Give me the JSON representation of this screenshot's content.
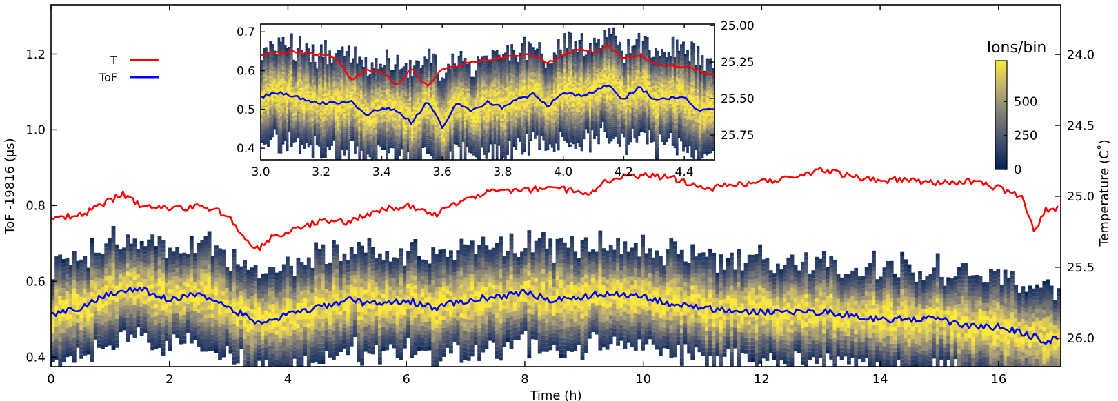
{
  "chart_data": [
    {
      "id": "main",
      "type": "heatmap",
      "title": "",
      "xlabel": "Time (h)",
      "ylabel": "ToF -19816 (μs)",
      "y2label": "Temperature (C˚)",
      "xlim": [
        0,
        17.05
      ],
      "ylim": [
        0.375,
        1.33
      ],
      "y2lim": [
        26.2,
        23.65
      ],
      "x_ticks": [
        0,
        2,
        4,
        6,
        8,
        10,
        12,
        14,
        16
      ],
      "y_ticks": [
        0.4,
        0.6,
        0.8,
        1.0,
        1.2
      ],
      "y_tick_labels": [
        "0.4",
        "0.6",
        "0.8",
        "1.0",
        "1.2"
      ],
      "y2_ticks": [
        24.0,
        24.5,
        25.0,
        25.5,
        26.0
      ],
      "y2_tick_labels": [
        "24.0",
        "24.5",
        "25.0",
        "25.5",
        "26.0"
      ],
      "legend": {
        "position": "upper-left",
        "entries": [
          {
            "label": "T",
            "color": "#ff0000"
          },
          {
            "label": "ToF",
            "color": "#0000ff"
          }
        ]
      },
      "series": [
        {
          "name": "T",
          "axis": "right",
          "color": "#ff0000",
          "x": [
            0,
            0.5,
            1.0,
            1.2,
            1.5,
            2.0,
            2.5,
            3.0,
            3.3,
            3.5,
            3.8,
            4.0,
            4.5,
            5.0,
            5.5,
            6.0,
            6.5,
            7.0,
            7.5,
            8.0,
            8.5,
            9.0,
            9.5,
            10.0,
            10.5,
            11.0,
            11.5,
            12.0,
            12.5,
            13.0,
            13.5,
            14.0,
            14.5,
            15.0,
            15.5,
            16.0,
            16.4,
            16.6,
            16.8,
            17.0
          ],
          "y": [
            25.16,
            25.13,
            25.03,
            24.98,
            25.06,
            25.09,
            25.07,
            25.13,
            25.33,
            25.37,
            25.27,
            25.25,
            25.18,
            25.18,
            25.1,
            25.07,
            25.13,
            25.01,
            24.96,
            24.96,
            24.93,
            24.99,
            24.87,
            24.85,
            24.87,
            24.95,
            24.92,
            24.9,
            24.87,
            24.81,
            24.86,
            24.89,
            24.88,
            24.91,
            24.89,
            24.94,
            25.01,
            25.25,
            25.1,
            25.09
          ]
        },
        {
          "name": "ToF",
          "axis": "left",
          "color": "#0000ff",
          "x": [
            0,
            0.5,
            1.0,
            1.5,
            2.0,
            2.5,
            3.0,
            3.5,
            4.0,
            4.5,
            5.0,
            5.5,
            6.0,
            6.5,
            7.0,
            7.5,
            8.0,
            8.5,
            9.0,
            9.5,
            10.0,
            10.5,
            11.0,
            11.5,
            12.0,
            12.5,
            13.0,
            13.5,
            14.0,
            14.5,
            15.0,
            15.5,
            16.0,
            16.5,
            16.8,
            17.0
          ],
          "y": [
            0.51,
            0.53,
            0.57,
            0.58,
            0.55,
            0.57,
            0.53,
            0.49,
            0.51,
            0.53,
            0.55,
            0.54,
            0.55,
            0.53,
            0.55,
            0.56,
            0.57,
            0.55,
            0.56,
            0.57,
            0.56,
            0.54,
            0.53,
            0.52,
            0.52,
            0.52,
            0.52,
            0.51,
            0.5,
            0.5,
            0.5,
            0.48,
            0.48,
            0.46,
            0.44,
            0.45
          ]
        }
      ],
      "heatmap": {
        "quantity": "Ions/bin",
        "colormap": "cividis",
        "center_follows": "ToF",
        "x_step": 0.06,
        "half_width": 0.13,
        "vmin": 0,
        "vmax": 800
      }
    },
    {
      "id": "inset",
      "type": "heatmap",
      "title": "",
      "xlabel": "",
      "ylabel": "",
      "xlim": [
        3.0,
        4.5
      ],
      "ylim": [
        0.37,
        0.72
      ],
      "y2lim": [
        25.92,
        24.99
      ],
      "x_ticks": [
        3.0,
        3.2,
        3.4,
        3.6,
        3.8,
        4.0,
        4.2,
        4.4
      ],
      "x_tick_labels": [
        "3.0",
        "3.2",
        "3.4",
        "3.6",
        "3.8",
        "4.0",
        "4.2",
        "4.4"
      ],
      "y_ticks": [
        0.4,
        0.5,
        0.6,
        0.7
      ],
      "y_tick_labels": [
        "0.4",
        "0.5",
        "0.6",
        "0.7"
      ],
      "y2_ticks": [
        25.0,
        25.25,
        25.5,
        25.75
      ],
      "y2_tick_labels": [
        "25.00",
        "25.25",
        "25.50",
        "25.75"
      ],
      "series": [
        {
          "name": "T",
          "axis": "right",
          "color": "#ff0000",
          "x": [
            3.0,
            3.1,
            3.2,
            3.25,
            3.3,
            3.35,
            3.4,
            3.45,
            3.5,
            3.55,
            3.6,
            3.7,
            3.8,
            3.9,
            3.95,
            4.0,
            4.05,
            4.1,
            4.15,
            4.2,
            4.25,
            4.3,
            4.4,
            4.5
          ],
          "y": [
            25.2,
            25.18,
            25.2,
            25.22,
            25.37,
            25.3,
            25.32,
            25.41,
            25.3,
            25.42,
            25.3,
            25.25,
            25.22,
            25.2,
            25.25,
            25.2,
            25.16,
            25.18,
            25.14,
            25.22,
            25.2,
            25.26,
            25.28,
            25.34
          ]
        },
        {
          "name": "ToF",
          "axis": "left",
          "color": "#0000ff",
          "x": [
            3.0,
            3.05,
            3.1,
            3.2,
            3.3,
            3.35,
            3.4,
            3.45,
            3.5,
            3.55,
            3.6,
            3.65,
            3.7,
            3.75,
            3.8,
            3.85,
            3.9,
            3.95,
            4.0,
            4.05,
            4.1,
            4.15,
            4.2,
            4.25,
            4.3,
            4.35,
            4.4,
            4.45,
            4.5
          ],
          "y": [
            0.53,
            0.545,
            0.535,
            0.515,
            0.52,
            0.485,
            0.505,
            0.495,
            0.465,
            0.52,
            0.455,
            0.52,
            0.495,
            0.52,
            0.505,
            0.525,
            0.54,
            0.51,
            0.545,
            0.535,
            0.545,
            0.565,
            0.525,
            0.56,
            0.525,
            0.53,
            0.535,
            0.495,
            0.5
          ]
        }
      ],
      "heatmap": {
        "quantity": "Ions/bin",
        "colormap": "cividis",
        "center_follows": "ToF",
        "x_step": 0.007,
        "half_width": 0.12,
        "vmin": 0,
        "vmax": 800
      }
    }
  ],
  "colorbar": {
    "title": "Ions/bin",
    "min": 0,
    "max": 800,
    "ticks": [
      0,
      250,
      500
    ],
    "tick_labels": [
      "0",
      "250",
      "500"
    ],
    "colors": [
      "#00224e",
      "#35456c",
      "#666970",
      "#958f78",
      "#cbba69",
      "#fee838"
    ]
  }
}
